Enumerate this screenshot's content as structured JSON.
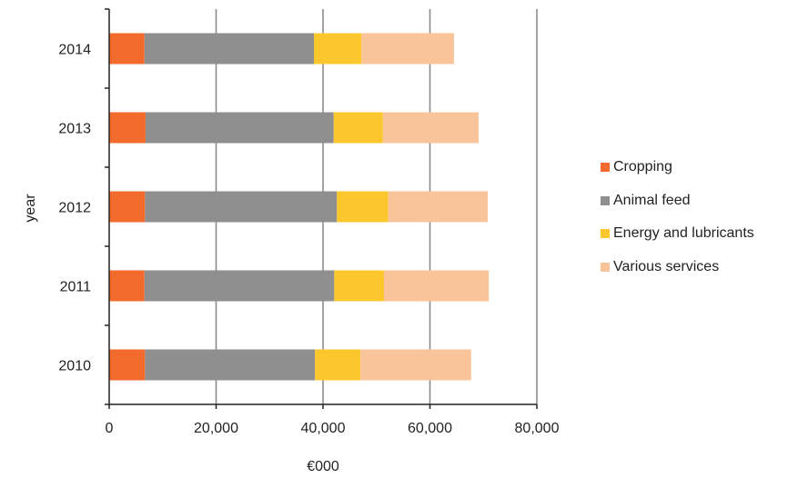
{
  "chart_data": {
    "type": "bar",
    "orientation": "horizontal",
    "stacked": true,
    "categories": [
      "2010",
      "2011",
      "2012",
      "2013",
      "2014"
    ],
    "series": [
      {
        "name": "Cropping",
        "color": "#f26b2c",
        "values": [
          6700,
          6600,
          6700,
          6800,
          6600
        ]
      },
      {
        "name": "Animal feed",
        "color": "#8f8f8f",
        "values": [
          31800,
          35500,
          35900,
          35200,
          31700
        ]
      },
      {
        "name": "Energy and lubricants",
        "color": "#fcc62d",
        "values": [
          8500,
          9300,
          9600,
          9200,
          8900
        ]
      },
      {
        "name": "Various services",
        "color": "#fac49b",
        "values": [
          20700,
          19600,
          18600,
          17900,
          17300
        ]
      }
    ],
    "xlabel": "€000",
    "ylabel": "year",
    "xlim": [
      0,
      80000
    ],
    "xticks": [
      "0",
      "20,000",
      "40,000",
      "60,000",
      "80,000"
    ],
    "xtick_values": [
      0,
      20000,
      40000,
      60000,
      80000
    ],
    "grid": "vertical",
    "legend_position": "right"
  }
}
